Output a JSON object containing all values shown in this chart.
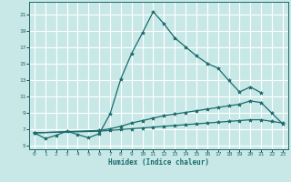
{
  "xlabel": "Humidex (Indice chaleur)",
  "background_color": "#c8e8e8",
  "grid_color": "#aed4d4",
  "line_color": "#1a6b6b",
  "xlim": [
    -0.5,
    23.5
  ],
  "ylim": [
    4.5,
    22.5
  ],
  "xticks": [
    0,
    1,
    2,
    3,
    4,
    5,
    6,
    7,
    8,
    9,
    10,
    11,
    12,
    13,
    14,
    15,
    16,
    17,
    18,
    19,
    20,
    21,
    22,
    23
  ],
  "yticks": [
    5,
    7,
    9,
    11,
    13,
    15,
    17,
    19,
    21
  ],
  "series": [
    {
      "x": [
        0,
        1,
        2,
        3,
        4,
        5,
        6,
        7,
        8,
        9,
        10,
        11,
        12,
        13,
        14,
        15,
        16,
        17,
        18,
        19,
        20,
        21
      ],
      "y": [
        6.5,
        5.8,
        6.2,
        6.7,
        6.3,
        5.9,
        6.4,
        8.8,
        13.1,
        16.2,
        18.7,
        21.3,
        19.8,
        18.1,
        17.0,
        15.9,
        15.0,
        14.4,
        12.9,
        11.5,
        12.1,
        11.4
      ]
    },
    {
      "x": [
        0,
        6,
        7,
        8,
        9,
        10,
        11,
        12,
        13,
        14,
        15,
        16,
        17,
        18,
        19,
        20,
        21,
        22,
        23
      ],
      "y": [
        6.5,
        6.8,
        7.0,
        7.3,
        7.7,
        8.0,
        8.3,
        8.6,
        8.8,
        9.0,
        9.2,
        9.4,
        9.6,
        9.8,
        10.0,
        10.4,
        10.2,
        8.9,
        7.6
      ]
    },
    {
      "x": [
        0,
        6,
        7,
        8,
        9,
        10,
        11,
        12,
        13,
        14,
        15,
        16,
        17,
        18,
        19,
        20,
        21,
        22,
        23
      ],
      "y": [
        6.5,
        6.7,
        6.8,
        6.9,
        7.0,
        7.1,
        7.2,
        7.3,
        7.4,
        7.5,
        7.6,
        7.7,
        7.8,
        7.9,
        8.0,
        8.1,
        8.1,
        7.9,
        7.7
      ]
    }
  ]
}
